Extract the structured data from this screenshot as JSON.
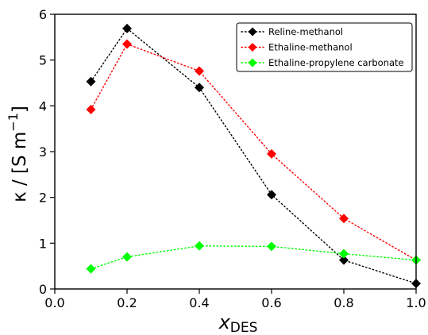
{
  "chart_data": {
    "type": "scatter",
    "xlabel": "x",
    "xlabel_sub": "DES",
    "ylabel": "κ / [S m",
    "ylabel_sup": "−1",
    "ylabel_close": "]",
    "xlim": [
      0.0,
      1.0
    ],
    "ylim": [
      0,
      6
    ],
    "xticks": [
      0.0,
      0.2,
      0.4,
      0.6,
      0.8,
      1.0
    ],
    "xtick_labels": [
      "0.0",
      "0.2",
      "0.4",
      "0.6",
      "0.8",
      "1.0"
    ],
    "yticks": [
      0,
      1,
      2,
      3,
      4,
      5,
      6
    ],
    "ytick_labels": [
      "0",
      "1",
      "2",
      "3",
      "4",
      "5",
      "6"
    ],
    "grid": false,
    "legend_position": "top-right",
    "series": [
      {
        "name": "Reline-methanol",
        "color": "#000000",
        "line_style": "dotted",
        "marker": "diamond",
        "x": [
          0.1,
          0.2,
          0.4,
          0.6,
          0.8,
          1.0
        ],
        "y": [
          4.53,
          5.69,
          4.4,
          2.06,
          0.63,
          0.12
        ]
      },
      {
        "name": "Ethaline-methanol",
        "color": "#ff0000",
        "line_style": "dotted",
        "marker": "diamond",
        "x": [
          0.1,
          0.2,
          0.4,
          0.6,
          0.8,
          1.0
        ],
        "y": [
          3.92,
          5.35,
          4.76,
          2.95,
          1.54,
          0.63
        ]
      },
      {
        "name": "Ethaline-propylene carbonate",
        "color": "#00ff00",
        "line_style": "dotted",
        "marker": "diamond",
        "x": [
          0.1,
          0.2,
          0.4,
          0.6,
          0.8,
          1.0
        ],
        "y": [
          0.44,
          0.7,
          0.94,
          0.93,
          0.77,
          0.63
        ]
      }
    ]
  }
}
